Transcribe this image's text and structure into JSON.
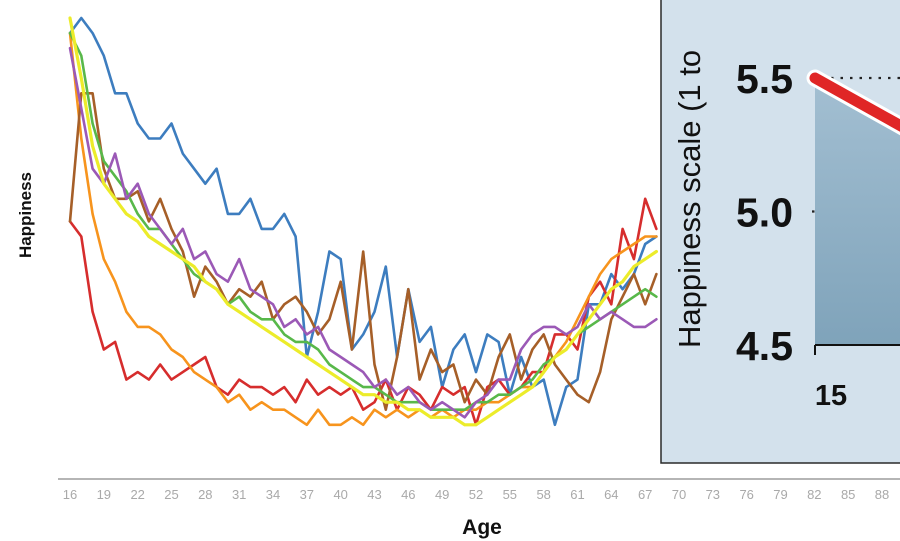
{
  "chart_data": [
    {
      "type": "line",
      "title": "",
      "xlabel": "Age",
      "ylabel": "Happiness",
      "x_ticks": [
        "16",
        "19",
        "22",
        "25",
        "28",
        "31",
        "34",
        "37",
        "40",
        "43",
        "46",
        "49",
        "52",
        "55",
        "58",
        "61",
        "64",
        "67",
        "70",
        "73",
        "76",
        "79",
        "82",
        "85",
        "88"
      ],
      "x": [
        16,
        17,
        18,
        19,
        20,
        21,
        22,
        23,
        24,
        25,
        26,
        27,
        28,
        29,
        30,
        31,
        32,
        33,
        34,
        35,
        36,
        37,
        38,
        39,
        40,
        41,
        42,
        43,
        44,
        45,
        46,
        47,
        48,
        49,
        50,
        51,
        52,
        53,
        54,
        55,
        56,
        57,
        58,
        59,
        60,
        61,
        62,
        63,
        64,
        65,
        66,
        67,
        68
      ],
      "series": [
        {
          "color": "#3d7dbf",
          "values": [
            8.8,
            9.0,
            8.8,
            8.5,
            8.0,
            8.0,
            7.6,
            7.4,
            7.4,
            7.6,
            7.2,
            7.0,
            6.8,
            7.0,
            6.4,
            6.4,
            6.6,
            6.2,
            6.2,
            6.4,
            6.1,
            4.5,
            5.1,
            5.9,
            5.8,
            4.6,
            4.8,
            5.1,
            5.7,
            4.5,
            5.4,
            4.7,
            4.9,
            4.1,
            4.6,
            4.8,
            4.3,
            4.8,
            4.7,
            4.0,
            4.5,
            4.1,
            4.2,
            3.6,
            4.1,
            4.2,
            5.2,
            5.2,
            5.6,
            5.4,
            5.6,
            6.0,
            6.1
          ]
        },
        {
          "color": "#d62d2d",
          "values": [
            6.3,
            6.1,
            5.1,
            4.6,
            4.7,
            4.2,
            4.3,
            4.2,
            4.4,
            4.2,
            4.3,
            4.4,
            4.5,
            4.1,
            4.0,
            4.2,
            4.1,
            4.1,
            4.0,
            4.1,
            3.9,
            4.2,
            4.0,
            4.1,
            4.0,
            4.1,
            3.8,
            3.9,
            4.2,
            3.8,
            4.1,
            4.0,
            3.8,
            4.1,
            4.0,
            4.1,
            3.6,
            4.1,
            4.2,
            4.0,
            4.1,
            4.3,
            4.3,
            4.8,
            4.8,
            4.6,
            5.3,
            5.5,
            5.2,
            6.2,
            5.8,
            6.6,
            6.2
          ]
        },
        {
          "color": "#f7941d",
          "values": [
            8.8,
            7.4,
            6.4,
            5.8,
            5.5,
            5.1,
            4.9,
            4.9,
            4.8,
            4.6,
            4.5,
            4.3,
            4.2,
            4.1,
            3.9,
            4.0,
            3.8,
            3.9,
            3.8,
            3.8,
            3.7,
            3.6,
            3.8,
            3.6,
            3.6,
            3.7,
            3.6,
            3.8,
            3.7,
            3.8,
            3.7,
            3.8,
            3.7,
            3.8,
            3.7,
            3.8,
            3.8,
            3.9,
            3.9,
            4.0,
            4.1,
            4.1,
            4.3,
            4.5,
            4.7,
            5.0,
            5.3,
            5.6,
            5.8,
            5.9,
            6.0,
            6.1,
            6.1
          ]
        },
        {
          "color": "#a65f28",
          "values": [
            6.3,
            8.0,
            8.0,
            7.0,
            6.6,
            6.6,
            6.7,
            6.3,
            6.6,
            6.2,
            5.9,
            5.3,
            5.7,
            5.5,
            5.2,
            5.4,
            5.3,
            5.5,
            5.0,
            5.2,
            5.3,
            5.1,
            4.8,
            5.0,
            5.5,
            4.6,
            5.9,
            4.4,
            3.8,
            4.5,
            5.4,
            4.2,
            4.6,
            4.3,
            4.4,
            3.9,
            4.2,
            4.0,
            4.5,
            4.8,
            4.2,
            4.6,
            4.8,
            4.4,
            4.2,
            4.0,
            3.9,
            4.3,
            5.0,
            5.3,
            5.6,
            5.2,
            5.6
          ]
        },
        {
          "color": "#58b84a",
          "values": [
            8.8,
            8.5,
            7.6,
            7.1,
            6.9,
            6.7,
            6.4,
            6.2,
            6.2,
            6.0,
            5.8,
            5.6,
            5.5,
            5.4,
            5.2,
            5.3,
            5.1,
            5.0,
            5.0,
            4.8,
            4.7,
            4.7,
            4.6,
            4.4,
            4.3,
            4.2,
            4.1,
            4.1,
            4.0,
            3.9,
            3.9,
            3.9,
            3.8,
            3.8,
            3.8,
            3.8,
            3.9,
            3.9,
            4.0,
            4.0,
            4.1,
            4.2,
            4.4,
            4.5,
            4.6,
            4.8,
            4.9,
            5.0,
            5.1,
            5.2,
            5.3,
            5.4,
            5.3
          ]
        },
        {
          "color": "#9b59b6",
          "values": [
            8.6,
            7.8,
            7.0,
            6.8,
            7.2,
            6.6,
            6.8,
            6.4,
            6.2,
            6.0,
            6.2,
            5.8,
            5.9,
            5.6,
            5.5,
            5.8,
            5.4,
            5.3,
            5.2,
            4.9,
            5.0,
            4.8,
            4.9,
            4.6,
            4.5,
            4.4,
            4.3,
            4.1,
            4.2,
            4.0,
            4.1,
            3.9,
            3.8,
            3.9,
            3.8,
            3.7,
            3.9,
            4.0,
            4.2,
            4.2,
            4.6,
            4.8,
            4.9,
            4.9,
            4.8,
            4.9,
            5.2,
            5.0,
            5.1,
            5.0,
            4.9,
            4.9,
            5.0
          ]
        },
        {
          "color": "#ecec2a",
          "values": [
            9.0,
            8.2,
            7.3,
            6.8,
            6.6,
            6.4,
            6.3,
            6.1,
            6.0,
            5.9,
            5.8,
            5.7,
            5.5,
            5.4,
            5.2,
            5.1,
            5.0,
            4.9,
            4.8,
            4.7,
            4.6,
            4.5,
            4.4,
            4.3,
            4.2,
            4.1,
            4.0,
            4.0,
            3.9,
            3.9,
            3.8,
            3.8,
            3.7,
            3.7,
            3.7,
            3.6,
            3.6,
            3.7,
            3.8,
            3.9,
            4.0,
            4.1,
            4.3,
            4.5,
            4.6,
            4.8,
            5.0,
            5.2,
            5.4,
            5.5,
            5.7,
            5.8,
            5.9
          ]
        }
      ]
    },
    {
      "type": "area",
      "ylabel": "Happiness scale (1 to",
      "y_ticks": [
        "5.5",
        "5.0",
        "4.5"
      ],
      "x_ticks": [
        "15"
      ],
      "x": [
        15,
        16.4
      ],
      "values": [
        5.5,
        5.26
      ],
      "ylim": [
        4.5,
        5.5
      ],
      "colors": {
        "line": "#e02626",
        "panel": "#d3e1ec",
        "area_top": "#a3bfd2",
        "area_bottom": "#7fa3ba"
      }
    }
  ]
}
